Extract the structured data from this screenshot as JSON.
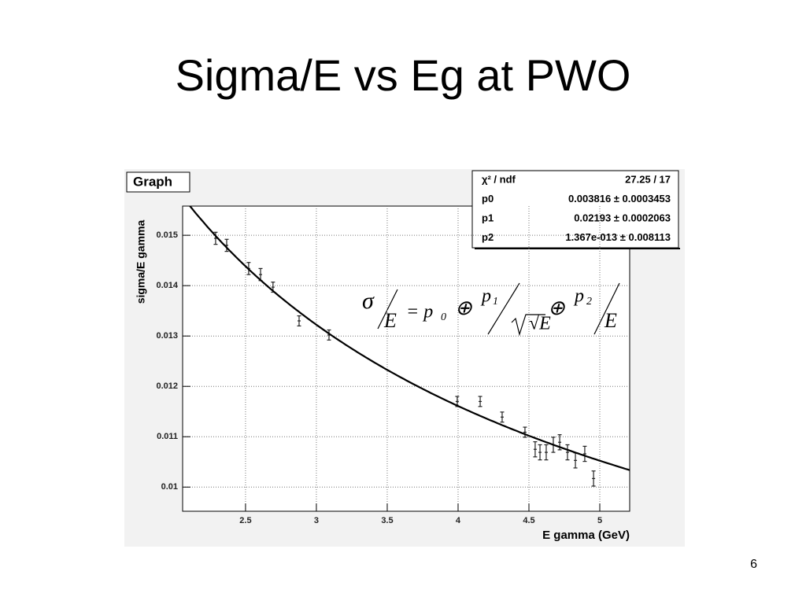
{
  "title": "Sigma/E vs Eg at PWO",
  "page_number": "6",
  "chart_data": {
    "type": "errorbar",
    "graph_label": "Graph",
    "x_label": "E gamma (GeV)",
    "y_label": "sigma/E gamma",
    "x": [
      2.289,
      2.367,
      2.522,
      2.606,
      2.694,
      2.878,
      3.089,
      3.994,
      4.156,
      4.311,
      4.472,
      4.544,
      4.578,
      4.622,
      4.672,
      4.717,
      4.772,
      4.828,
      4.894,
      4.956
    ],
    "values": [
      0.01494,
      0.0148,
      0.01434,
      0.01422,
      0.01397,
      0.0133,
      0.01302,
      0.0117,
      0.0117,
      0.01139,
      0.01109,
      0.01075,
      0.01069,
      0.01069,
      0.01084,
      0.01089,
      0.01069,
      0.01053,
      0.01066,
      0.01017
    ],
    "errors": [
      0.00012,
      0.00012,
      0.00012,
      0.00012,
      0.0001,
      0.0001,
      0.0001,
      0.0001,
      0.0001,
      0.0001,
      0.0001,
      0.00015,
      0.00015,
      0.00015,
      0.00015,
      0.00015,
      0.00015,
      0.00015,
      0.00015,
      0.00015
    ],
    "color": "#222222",
    "fit": {
      "color": "#000000",
      "chi2_label": "χ² / ndf",
      "chi2": "27.25 / 17",
      "params": [
        {
          "name": "p0",
          "value": 0.003816,
          "label": "0.003816 ± 0.0003453"
        },
        {
          "name": "p1",
          "value": 0.02193,
          "label": "0.02193 ± 0.0002063"
        },
        {
          "name": "p2",
          "value": 1.367e-13,
          "label": "1.367e-013 ± 0.008113"
        }
      ]
    },
    "formula": [
      "σ",
      "E",
      "= p",
      "0",
      "⊕",
      "p",
      "1",
      "√E",
      "⊕",
      "p",
      "2",
      "E"
    ],
    "xlim": [
      2.056,
      5.211
    ],
    "ylim": [
      0.00952,
      0.01558
    ],
    "xticks": [
      2.5,
      3,
      3.5,
      4,
      4.5,
      5
    ],
    "yticks": [
      0.01,
      0.011,
      0.012,
      0.013,
      0.014,
      0.015
    ],
    "grid": true
  }
}
